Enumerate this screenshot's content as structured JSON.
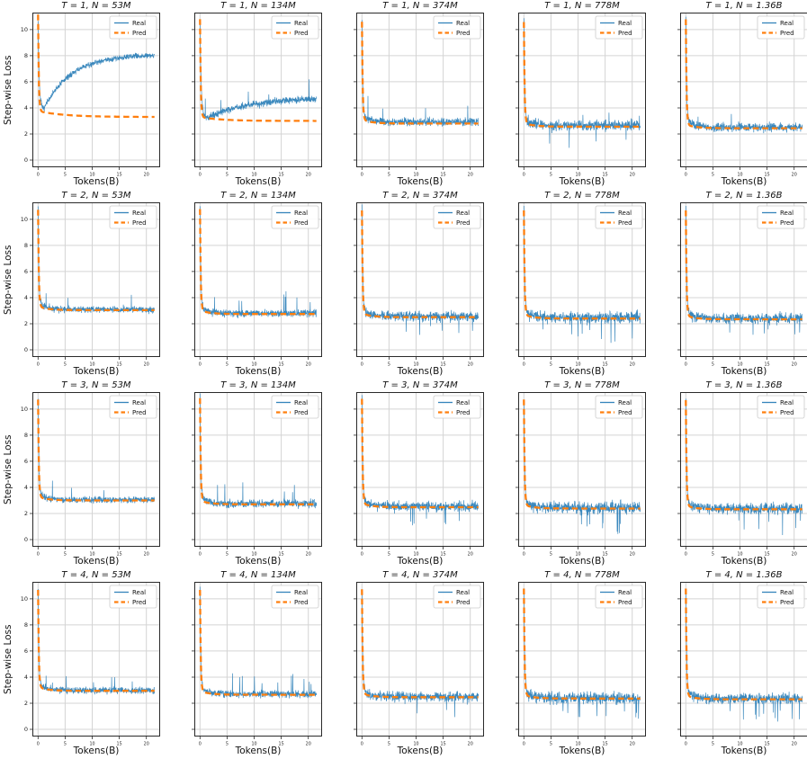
{
  "figure": {
    "ylabel": "Step-wise Loss",
    "xlabel": "Tokens(B)",
    "legend": {
      "real_label": "Real",
      "pred_label": "Pred"
    },
    "x_ticks": [
      0,
      5,
      10,
      15,
      20
    ],
    "y_ticks": [
      0,
      2,
      4,
      6,
      8,
      10
    ],
    "x_range": [
      0,
      21.5
    ],
    "xlim": [
      -1.05,
      22.55
    ],
    "ylim": [
      -0.55,
      11.3
    ],
    "row_param_name": "T",
    "col_param_name": "N",
    "row_values": [
      1,
      2,
      3,
      4
    ],
    "col_values": [
      "53M",
      "134M",
      "374M",
      "778M",
      "1.36B"
    ],
    "colors": {
      "real": "#1f77b4",
      "pred": "#ff7f0e",
      "grid": "#d4d4d4",
      "spine": "#2a2a2a",
      "legend_border": "#cccccc",
      "background": "#ffffff"
    }
  },
  "chart_data": [
    {
      "type": "line",
      "title": "T = 1, N = 53M",
      "T": 1,
      "N": "53M",
      "real": {
        "shape": "dip_rise",
        "start": 10.7,
        "min": 3.85,
        "end": 8.1,
        "delay": 1.0,
        "tau": 5.0,
        "noise": 0.22,
        "spikes": {
          "prob": 0.0,
          "mag": 0.0,
          "dir": "both",
          "late": false
        }
      },
      "pred": {
        "start": 10.7,
        "plateau": 3.3,
        "bump": 0.45,
        "bump_tau": 5.0
      }
    },
    {
      "type": "line",
      "title": "T = 1, N = 134M",
      "T": 1,
      "N": "134M",
      "real": {
        "shape": "dip_rise",
        "start": 10.5,
        "min": 3.25,
        "end": 4.75,
        "delay": 1.5,
        "tau": 7.0,
        "noise": 0.27,
        "spikes": {
          "prob": 0.006,
          "mag": 0.8,
          "dir": "up",
          "late": false
        }
      },
      "pred": {
        "start": 10.5,
        "plateau": 3.0,
        "bump": 0.3,
        "bump_tau": 4.0
      }
    },
    {
      "type": "line",
      "title": "T = 1, N = 374M",
      "T": 1,
      "N": "374M",
      "real": {
        "shape": "decay",
        "start": 10.3,
        "plateau": 2.92,
        "knee": 0.5,
        "knee_tau": 1.4,
        "noise": 0.28,
        "spikes": {
          "prob": 0.008,
          "mag": 1.0,
          "dir": "up",
          "late": false
        }
      },
      "pred": {
        "start": 10.3,
        "plateau": 2.8,
        "bump": 0.3,
        "bump_tau": 1.8
      }
    },
    {
      "type": "line",
      "title": "T = 1, N = 778M",
      "T": 1,
      "N": "778M",
      "real": {
        "shape": "decay",
        "start": 10.3,
        "plateau": 2.66,
        "knee": 0.5,
        "knee_tau": 1.4,
        "noise": 0.38,
        "spikes": {
          "prob": 0.012,
          "mag": 0.8,
          "dir": "both",
          "late": false
        }
      },
      "pred": {
        "start": 10.3,
        "plateau": 2.56,
        "bump": 0.28,
        "bump_tau": 1.8
      }
    },
    {
      "type": "line",
      "title": "T = 1, N = 1.36B",
      "T": 1,
      "N": "1.36B",
      "real": {
        "shape": "decay",
        "start": 10.5,
        "plateau": 2.5,
        "knee": 0.55,
        "knee_tau": 1.5,
        "noise": 0.33,
        "spikes": {
          "prob": 0.008,
          "mag": 0.7,
          "dir": "both",
          "late": false
        }
      },
      "pred": {
        "start": 10.5,
        "plateau": 2.44,
        "bump": 0.28,
        "bump_tau": 1.8
      }
    },
    {
      "type": "line",
      "title": "T = 2, N = 53M",
      "T": 2,
      "N": "53M",
      "real": {
        "shape": "decay",
        "start": 10.45,
        "plateau": 3.1,
        "knee": 0.5,
        "knee_tau": 1.4,
        "noise": 0.24,
        "spikes": {
          "prob": 0.006,
          "mag": 0.8,
          "dir": "up",
          "late": false
        }
      },
      "pred": {
        "start": 10.45,
        "plateau": 3.04,
        "bump": 0.28,
        "bump_tau": 1.8
      }
    },
    {
      "type": "line",
      "title": "T = 2, N = 134M",
      "T": 2,
      "N": "134M",
      "real": {
        "shape": "decay",
        "start": 10.5,
        "plateau": 2.8,
        "knee": 0.5,
        "knee_tau": 1.4,
        "noise": 0.28,
        "spikes": {
          "prob": 0.01,
          "mag": 1.0,
          "dir": "up",
          "late": false
        }
      },
      "pred": {
        "start": 10.5,
        "plateau": 2.74,
        "bump": 0.28,
        "bump_tau": 1.8
      }
    },
    {
      "type": "line",
      "title": "T = 2, N = 374M",
      "T": 2,
      "N": "374M",
      "real": {
        "shape": "decay",
        "start": 10.4,
        "plateau": 2.57,
        "knee": 0.5,
        "knee_tau": 1.4,
        "noise": 0.36,
        "spikes": {
          "prob": 0.012,
          "mag": 0.9,
          "dir": "down",
          "late": true
        }
      },
      "pred": {
        "start": 10.4,
        "plateau": 2.5,
        "bump": 0.28,
        "bump_tau": 1.8
      }
    },
    {
      "type": "line",
      "title": "T = 2, N = 778M",
      "T": 2,
      "N": "778M",
      "real": {
        "shape": "decay",
        "start": 10.4,
        "plateau": 2.47,
        "knee": 0.5,
        "knee_tau": 1.4,
        "noise": 0.42,
        "spikes": {
          "prob": 0.02,
          "mag": 1.0,
          "dir": "down",
          "late": true
        }
      },
      "pred": {
        "start": 10.4,
        "plateau": 2.4,
        "bump": 0.28,
        "bump_tau": 1.8
      }
    },
    {
      "type": "line",
      "title": "T = 2, N = 1.36B",
      "T": 2,
      "N": "1.36B",
      "real": {
        "shape": "decay",
        "start": 10.4,
        "plateau": 2.4,
        "knee": 0.5,
        "knee_tau": 1.4,
        "noise": 0.38,
        "spikes": {
          "prob": 0.018,
          "mag": 0.95,
          "dir": "down",
          "late": true
        }
      },
      "pred": {
        "start": 10.4,
        "plateau": 2.34,
        "bump": 0.28,
        "bump_tau": 1.8
      }
    },
    {
      "type": "line",
      "title": "T = 3, N = 53M",
      "T": 3,
      "N": "53M",
      "real": {
        "shape": "decay",
        "start": 10.45,
        "plateau": 3.05,
        "knee": 0.5,
        "knee_tau": 1.4,
        "noise": 0.24,
        "spikes": {
          "prob": 0.006,
          "mag": 0.8,
          "dir": "up",
          "late": false
        }
      },
      "pred": {
        "start": 10.45,
        "plateau": 3.0,
        "bump": 0.28,
        "bump_tau": 1.8
      }
    },
    {
      "type": "line",
      "title": "T = 3, N = 134M",
      "T": 3,
      "N": "134M",
      "real": {
        "shape": "decay",
        "start": 10.55,
        "plateau": 2.76,
        "knee": 0.5,
        "knee_tau": 1.4,
        "noise": 0.29,
        "spikes": {
          "prob": 0.01,
          "mag": 1.0,
          "dir": "up",
          "late": false
        }
      },
      "pred": {
        "start": 10.55,
        "plateau": 2.7,
        "bump": 0.28,
        "bump_tau": 1.8
      }
    },
    {
      "type": "line",
      "title": "T = 3, N = 374M",
      "T": 3,
      "N": "374M",
      "real": {
        "shape": "decay",
        "start": 10.5,
        "plateau": 2.54,
        "knee": 0.5,
        "knee_tau": 1.4,
        "noise": 0.36,
        "spikes": {
          "prob": 0.014,
          "mag": 0.95,
          "dir": "down",
          "late": true
        }
      },
      "pred": {
        "start": 10.5,
        "plateau": 2.48,
        "bump": 0.28,
        "bump_tau": 1.8
      }
    },
    {
      "type": "line",
      "title": "T = 3, N = 778M",
      "T": 3,
      "N": "778M",
      "real": {
        "shape": "decay",
        "start": 10.45,
        "plateau": 2.44,
        "knee": 0.5,
        "knee_tau": 1.4,
        "noise": 0.44,
        "spikes": {
          "prob": 0.025,
          "mag": 1.1,
          "dir": "down",
          "late": true
        }
      },
      "pred": {
        "start": 10.45,
        "plateau": 2.38,
        "bump": 0.28,
        "bump_tau": 1.8
      }
    },
    {
      "type": "line",
      "title": "T = 3, N = 1.36B",
      "T": 3,
      "N": "1.36B",
      "real": {
        "shape": "decay",
        "start": 10.4,
        "plateau": 2.38,
        "knee": 0.5,
        "knee_tau": 1.4,
        "noise": 0.4,
        "spikes": {
          "prob": 0.022,
          "mag": 1.0,
          "dir": "down",
          "late": true
        }
      },
      "pred": {
        "start": 10.4,
        "plateau": 2.32,
        "bump": 0.28,
        "bump_tau": 1.8
      }
    },
    {
      "type": "line",
      "title": "T = 4, N = 53M",
      "T": 4,
      "N": "53M",
      "real": {
        "shape": "decay",
        "start": 10.4,
        "plateau": 2.99,
        "knee": 0.5,
        "knee_tau": 1.4,
        "noise": 0.24,
        "spikes": {
          "prob": 0.005,
          "mag": 0.7,
          "dir": "up",
          "late": false
        }
      },
      "pred": {
        "start": 10.4,
        "plateau": 2.95,
        "bump": 0.28,
        "bump_tau": 1.8
      }
    },
    {
      "type": "line",
      "title": "T = 4, N = 134M",
      "T": 4,
      "N": "134M",
      "real": {
        "shape": "decay",
        "start": 10.4,
        "plateau": 2.7,
        "knee": 0.5,
        "knee_tau": 1.4,
        "noise": 0.27,
        "spikes": {
          "prob": 0.008,
          "mag": 0.9,
          "dir": "up",
          "late": false
        }
      },
      "pred": {
        "start": 10.4,
        "plateau": 2.65,
        "bump": 0.28,
        "bump_tau": 1.8
      }
    },
    {
      "type": "line",
      "title": "T = 4, N = 374M",
      "T": 4,
      "N": "374M",
      "real": {
        "shape": "decay",
        "start": 10.45,
        "plateau": 2.5,
        "knee": 0.5,
        "knee_tau": 1.4,
        "noise": 0.35,
        "spikes": {
          "prob": 0.012,
          "mag": 0.9,
          "dir": "down",
          "late": true
        }
      },
      "pred": {
        "start": 10.45,
        "plateau": 2.46,
        "bump": 0.28,
        "bump_tau": 1.8
      }
    },
    {
      "type": "line",
      "title": "T = 4, N = 778M",
      "T": 4,
      "N": "778M",
      "real": {
        "shape": "decay",
        "start": 10.5,
        "plateau": 2.41,
        "knee": 0.5,
        "knee_tau": 1.4,
        "noise": 0.44,
        "spikes": {
          "prob": 0.025,
          "mag": 1.1,
          "dir": "down",
          "late": true
        }
      },
      "pred": {
        "start": 10.5,
        "plateau": 2.36,
        "bump": 0.28,
        "bump_tau": 1.8
      }
    },
    {
      "type": "line",
      "title": "T = 4, N = 1.36B",
      "T": 4,
      "N": "1.36B",
      "real": {
        "shape": "decay",
        "start": 10.5,
        "plateau": 2.36,
        "knee": 0.5,
        "knee_tau": 1.4,
        "noise": 0.38,
        "spikes": {
          "prob": 0.022,
          "mag": 1.0,
          "dir": "down",
          "late": true
        }
      },
      "pred": {
        "start": 10.5,
        "plateau": 2.3,
        "bump": 0.28,
        "bump_tau": 1.8
      }
    }
  ]
}
